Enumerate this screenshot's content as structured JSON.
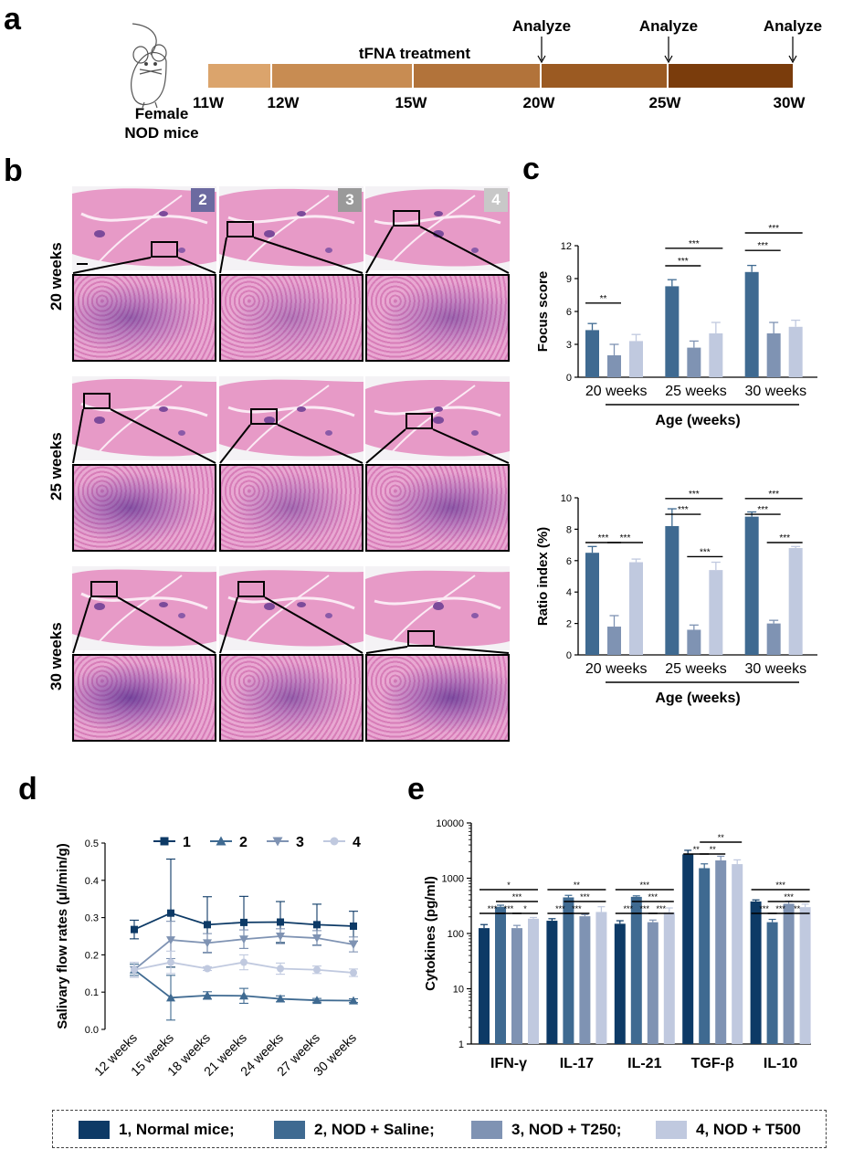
{
  "panels": {
    "a": "a",
    "b": "b",
    "c": "c",
    "d": "d",
    "e": "e"
  },
  "colors": {
    "g1": "#0d3a66",
    "g2": "#3f6a91",
    "g3": "#7f93b3",
    "g4": "#c0c9df"
  },
  "timeline": {
    "mouse_line1": "Female",
    "mouse_line2": "NOD mice",
    "treatment_label": "tFNA treatment",
    "analyze": [
      "Analyze",
      "Analyze",
      "Analyze"
    ],
    "weeks": [
      "11W",
      "12W",
      "15W",
      "20W",
      "25W",
      "30W"
    ],
    "segment_colors": [
      "#dba46c",
      "#c88c52",
      "#b2733a",
      "#9b5a22",
      "#7a3c0c"
    ]
  },
  "histology": {
    "badges": [
      "2",
      "3",
      "4"
    ],
    "badge_colors": [
      "#6c6aa0",
      "#9a9a9a",
      "#c8c8c8"
    ],
    "rows": [
      "20 weeks",
      "25 weeks",
      "30 weeks"
    ]
  },
  "legend": [
    {
      "label": "1, Normal mice;",
      "color": "#0d3a66"
    },
    {
      "label": "2, NOD + Saline;",
      "color": "#3f6a91"
    },
    {
      "label": "3, NOD + T250;",
      "color": "#7f93b3"
    },
    {
      "label": "4, NOD + T500",
      "color": "#c0c9df"
    }
  ],
  "chart_data": [
    {
      "id": "focus",
      "type": "bar",
      "ylabel": "Focus score",
      "xlabel": "Age (weeks)",
      "categories": [
        "20 weeks",
        "25 weeks",
        "30 weeks"
      ],
      "ylim": [
        0,
        12
      ],
      "yticks": [
        0,
        3,
        6,
        9,
        12
      ],
      "series": [
        {
          "values": [
            4.3,
            8.3,
            9.6
          ],
          "err": [
            0.6,
            0.6,
            0.6
          ]
        },
        {
          "values": [
            2.0,
            2.7,
            4.0
          ],
          "err": [
            1.0,
            0.6,
            1.0
          ]
        },
        {
          "values": [
            3.3,
            4.0,
            4.6
          ],
          "err": [
            0.6,
            1.0,
            0.6
          ]
        }
      ],
      "annotations": [
        "**",
        "***",
        "***",
        "***",
        "***"
      ]
    },
    {
      "id": "ratio",
      "type": "bar",
      "ylabel": "Ratio index (%)",
      "xlabel": "Age (weeks)",
      "categories": [
        "20 weeks",
        "25 weeks",
        "30 weeks"
      ],
      "ylim": [
        0,
        10
      ],
      "yticks": [
        0,
        2,
        4,
        6,
        8,
        10
      ],
      "series": [
        {
          "values": [
            6.5,
            8.2,
            8.8
          ],
          "err": [
            0.4,
            1.1,
            0.3
          ]
        },
        {
          "values": [
            1.8,
            1.6,
            2.0
          ],
          "err": [
            0.7,
            0.3,
            0.2
          ]
        },
        {
          "values": [
            5.9,
            5.4,
            6.8
          ],
          "err": [
            0.2,
            0.5,
            0.1
          ]
        }
      ],
      "annotations": [
        "***",
        "***",
        "***",
        "***",
        "***",
        "***",
        "***",
        "***"
      ]
    },
    {
      "id": "salivary",
      "type": "line",
      "ylabel": "Salivary flow rates (μl/min/g)",
      "categories": [
        "12 weeks",
        "15 weeks",
        "18 weeks",
        "21 weeks",
        "24 weeks",
        "27 weeks",
        "30 weeks"
      ],
      "ylim": [
        0,
        0.5
      ],
      "yticks": [
        "0.0",
        "0.1",
        "0.2",
        "0.3",
        "0.4",
        "0.5"
      ],
      "legend_placement": "top",
      "series": [
        {
          "name": "1",
          "marker": "square",
          "values": [
            0.268,
            0.312,
            0.281,
            0.287,
            0.288,
            0.281,
            0.277
          ],
          "err": [
            0.025,
            0.145,
            0.075,
            0.07,
            0.055,
            0.055,
            0.04
          ]
        },
        {
          "name": "2",
          "marker": "triangle",
          "values": [
            0.16,
            0.085,
            0.091,
            0.09,
            0.082,
            0.078,
            0.077
          ],
          "err": [
            0.015,
            0.06,
            0.01,
            0.02,
            0.008,
            0.005,
            0.005
          ]
        },
        {
          "name": "3",
          "marker": "triangle-down",
          "values": [
            0.16,
            0.24,
            0.232,
            0.242,
            0.25,
            0.245,
            0.228
          ],
          "err": [
            0.02,
            0.05,
            0.025,
            0.025,
            0.02,
            0.02,
            0.02
          ]
        },
        {
          "name": "4",
          "marker": "circle",
          "values": [
            0.16,
            0.18,
            0.163,
            0.18,
            0.163,
            0.16,
            0.152
          ],
          "err": [
            0.02,
            0.03,
            0.005,
            0.02,
            0.015,
            0.01,
            0.01
          ]
        }
      ]
    },
    {
      "id": "cytokines",
      "type": "bar",
      "ylabel": "Cytokines (pg/ml)",
      "categories": [
        "IFN-γ",
        "IL-17",
        "IL-21",
        "TGF-β",
        "IL-10"
      ],
      "yscale": "log",
      "ylim": [
        1,
        10000
      ],
      "yticks": [
        "1",
        "10",
        "100",
        "1000",
        "10000"
      ],
      "series": [
        {
          "values": [
            125,
            170,
            150,
            2700,
            380
          ],
          "err": [
            20,
            15,
            20,
            500,
            25
          ]
        },
        {
          "values": [
            305,
            450,
            460,
            1520,
            160
          ],
          "err": [
            20,
            40,
            20,
            300,
            20
          ]
        },
        {
          "values": [
            125,
            205,
            160,
            2100,
            345
          ],
          "err": [
            15,
            15,
            15,
            400,
            40
          ]
        },
        {
          "values": [
            185,
            245,
            240,
            1800,
            300
          ],
          "err": [
            10,
            60,
            50,
            350,
            40
          ]
        }
      ],
      "annotations": [
        [
          "*",
          "***",
          "***",
          "***",
          "*"
        ],
        [
          "**",
          "***",
          "***",
          "***"
        ],
        [
          "***",
          "***",
          "***",
          "***",
          "***"
        ],
        [
          "**",
          "**",
          "**"
        ],
        [
          "***",
          "***",
          "***",
          "***",
          "**"
        ]
      ]
    }
  ]
}
